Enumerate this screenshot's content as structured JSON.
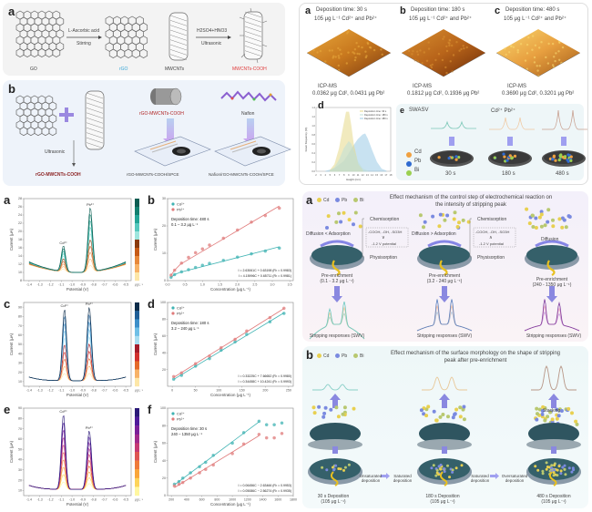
{
  "topleft": {
    "a_label": "a",
    "a_items": [
      "GO",
      "rGO",
      "MWCNTs",
      "MWCNTs-COOH"
    ],
    "a_arrow1_top": "L-Ascorbic acid",
    "a_arrow1_bottom": "Stirring",
    "a_arrow2_top": "H2SO4+HNO3",
    "a_arrow2_bottom": "Ultrasonic",
    "b_label": "b",
    "b_ultrasonic": "Ultrasonic",
    "b_product": "rGO-MWCNTs-COOH",
    "b_drop1": "rGO-MWCNTs-COOH",
    "b_drop2": "Nafion",
    "b_electrode1": "rGO-MWCNTs-COOH/SPCE",
    "b_electrode2": "Nafion/rGO-MWCNTs-COOH/SPCE",
    "colors": {
      "rgo": "#3aa8d8",
      "cooh": "#e03a3a",
      "dark_red": "#8a1f1f"
    }
  },
  "afm": {
    "panels": [
      {
        "label": "a",
        "line1": "Deposition time: 30 s",
        "line2": "105 μg L⁻¹ Cd²⁺ and Pb²⁺",
        "icp": "ICP-MS",
        "icp_values": "0.0362 μg Cd², 0.0431 μg Pb²"
      },
      {
        "label": "b",
        "line1": "Deposition time: 180 s",
        "line2": "105 μg L⁻¹ Cd²⁺ and Pb²⁺",
        "icp": "ICP-MS",
        "icp_values": "0.1812 μg Cd², 0.1936 μg Pb²"
      },
      {
        "label": "c",
        "line1": "Deposition time: 480 s",
        "line2": "105 μg L⁻¹ Cd²⁺ and Pb²⁺",
        "icp": "ICP-MS",
        "icp_values": "0.3690 μg Cd², 0.3201 μg Pb²"
      }
    ],
    "d_label": "d",
    "d_legend": [
      "Deposition time: 30 s",
      "Deposition time: 180 s",
      "Deposition time: 480 s"
    ],
    "d_xlabel": "Height (nm)",
    "d_ylabel": "Grain frequency (%)",
    "e_label": "e",
    "e_title": "SWASV",
    "e_ions": "Cd²⁺ Pb²⁺",
    "e_legend": [
      "Cd",
      "Pb",
      "Bi"
    ],
    "e_times": [
      "30 s",
      "180 s",
      "480 s"
    ]
  },
  "chart_data": [
    {
      "id": "a",
      "type": "line",
      "title": "",
      "xlabel": "Potential (V)",
      "ylabel": "Current (μA)",
      "xlim": [
        -1.45,
        -0.45
      ],
      "ylim": [
        8,
        28
      ],
      "xticks": [
        "-1.4",
        "-1.3",
        "-1.2",
        "-1.1",
        "-1.0",
        "-0.9",
        "-0.8",
        "-0.7",
        "-0.6",
        "-0.5"
      ],
      "yticks": [
        "8",
        "10",
        "12",
        "14",
        "16",
        "18",
        "20",
        "22",
        "24",
        "26",
        "28"
      ],
      "peaks": [
        {
          "label": "Cd²⁺",
          "x": -1.08,
          "y": 16.5
        },
        {
          "label": "Pb²⁺",
          "x": -0.83,
          "y": 25.8
        }
      ],
      "colorbar_label": "μg L⁻¹",
      "palette": [
        "#fde7a8",
        "#f7b267",
        "#e7883a",
        "#c65a16",
        "#8a3a0c",
        "#9fe6de",
        "#56c8bd",
        "#24a596",
        "#13806f",
        "#0d5d52"
      ]
    },
    {
      "id": "b",
      "type": "scatter",
      "xlabel": "Concentration (μg L⁻¹)",
      "ylabel": "Current (μA)",
      "xlim": [
        0,
        3.6
      ],
      "ylim": [
        0,
        30
      ],
      "xticks": [
        "0.0",
        "0.5",
        "1.0",
        "1.5",
        "2.0",
        "2.5",
        "3.0",
        "3.5"
      ],
      "yticks": [
        "0",
        "10",
        "20",
        "30"
      ],
      "annotation": [
        "Deposition time: 480 s",
        "0.1 – 3.2 μg L⁻¹"
      ],
      "equations": [
        "I = 2.63061C + 0.63198 (R² = 0.9983)",
        "I = 4.15996C + 0.65711 (R² = 0.9981)"
      ],
      "series": [
        {
          "name": "Cd²⁺",
          "color": "#3fb3b3",
          "x": [
            0.1,
            0.2,
            0.4,
            0.6,
            0.8,
            1.0,
            1.2,
            1.6,
            2.0,
            2.4,
            2.8,
            3.2
          ],
          "y": [
            1.2,
            2.2,
            3.2,
            4.0,
            4.8,
            5.6,
            6.3,
            7.4,
            8.6,
            9.8,
            10.8,
            11.9
          ]
        },
        {
          "name": "Pb²⁺",
          "color": "#e07a7a",
          "x": [
            0.1,
            0.2,
            0.4,
            0.6,
            0.8,
            1.0,
            1.2,
            1.6,
            2.0,
            2.4,
            2.8,
            3.2
          ],
          "y": [
            2.0,
            3.8,
            6.4,
            8.5,
            10.2,
            11.6,
            13.0,
            15.5,
            18.5,
            21.4,
            23.8,
            26.5
          ]
        }
      ]
    },
    {
      "id": "c",
      "type": "line",
      "xlabel": "Potential (V)",
      "ylabel": "Current (μA)",
      "xlim": [
        -1.45,
        -0.45
      ],
      "ylim": [
        5,
        95
      ],
      "xticks": [
        "-1.4",
        "-1.3",
        "-1.2",
        "-1.1",
        "-1.0",
        "-0.9",
        "-0.8",
        "-0.7",
        "-0.6",
        "-0.5"
      ],
      "yticks": [
        "10",
        "20",
        "30",
        "40",
        "50",
        "60",
        "70",
        "80",
        "90"
      ],
      "peaks": [
        {
          "label": "Cd²⁺",
          "x": -1.07,
          "y": 88
        },
        {
          "label": "Pb²⁺",
          "x": -0.84,
          "y": 90
        }
      ],
      "colorbar_label": "μg L⁻¹",
      "palette": [
        "#fde7a8",
        "#f7b267",
        "#e46a2a",
        "#d1302c",
        "#a41c2a",
        "#a9ddf0",
        "#6fbfe6",
        "#3d8fc9",
        "#1f5e96",
        "#0d2c4a"
      ]
    },
    {
      "id": "d",
      "type": "scatter",
      "xlabel": "Concentration (μg L⁻¹)",
      "ylabel": "Current (μA)",
      "xlim": [
        -10,
        260
      ],
      "ylim": [
        0,
        100
      ],
      "xticks": [
        "0",
        "50",
        "100",
        "150",
        "200",
        "250"
      ],
      "yticks": [
        "20",
        "40",
        "60",
        "80",
        "100"
      ],
      "annotation": [
        "Deposition time: 180 s",
        "3.2 – 240 μg L⁻¹"
      ],
      "equations": [
        "I = 0.33225C + 7.66652 (R² = 0.9980)",
        "I = 0.34458C + 10.4241 (R² = 0.9993)"
      ],
      "series": [
        {
          "name": "Cd²⁺",
          "color": "#3fb3b3",
          "x": [
            3.2,
            20,
            50,
            80,
            105,
            135,
            160,
            210,
            240
          ],
          "y": [
            8.5,
            13,
            24,
            33,
            43,
            53,
            62,
            77,
            87
          ]
        },
        {
          "name": "Pb²⁺",
          "color": "#e07a7a",
          "x": [
            3.2,
            20,
            50,
            80,
            105,
            135,
            160,
            210,
            240
          ],
          "y": [
            11.5,
            16,
            27,
            36,
            46,
            56,
            66,
            82,
            93
          ]
        }
      ]
    },
    {
      "id": "e",
      "type": "line",
      "xlabel": "Potential (V)",
      "ylabel": "Current (μA)",
      "xlim": [
        -1.45,
        -0.45
      ],
      "ylim": [
        5,
        90
      ],
      "xticks": [
        "-1.4",
        "-1.3",
        "-1.2",
        "-1.1",
        "-1.0",
        "-0.9",
        "-0.8",
        "-0.7",
        "-0.6",
        "-0.5"
      ],
      "yticks": [
        "10",
        "20",
        "30",
        "40",
        "50",
        "60",
        "70",
        "80",
        "90"
      ],
      "peaks": [
        {
          "label": "Cd²⁺",
          "x": -1.08,
          "y": 84
        },
        {
          "label": "Pb²⁺",
          "x": -0.84,
          "y": 68
        }
      ],
      "colorbar_label": "μg L⁻¹",
      "palette": [
        "#fff7a0",
        "#fdd45a",
        "#f9a63a",
        "#ef7a3a",
        "#de5552",
        "#c53a72",
        "#a02a8a",
        "#7a1f98",
        "#4f1a9a",
        "#2b1a78"
      ]
    },
    {
      "id": "f",
      "type": "scatter",
      "xlabel": "Concentration (μg L⁻¹)",
      "ylabel": "Current (μA)",
      "xlim": [
        150,
        1800
      ],
      "ylim": [
        0,
        100
      ],
      "xticks": [
        "200",
        "400",
        "600",
        "800",
        "1000",
        "1200",
        "1400",
        "1600",
        "1800"
      ],
      "yticks": [
        "0",
        "20",
        "40",
        "60",
        "80",
        "100"
      ],
      "annotation": [
        "Deposition time: 30 s",
        "240 – 1350 μg L⁻¹"
      ],
      "equations": [
        "I = 0.06456C − 2.63466 (R² = 0.9953)",
        "I = 0.05086C − 2.56274 (R² = 0.9935)"
      ],
      "series": [
        {
          "name": "Cd²⁺",
          "color": "#3fb3b3",
          "x": [
            240,
            300,
            350,
            450,
            570,
            650,
            750,
            1000,
            1150,
            1350,
            1450,
            1550,
            1650
          ],
          "y": [
            13,
            16,
            20,
            26,
            33,
            38,
            46,
            60,
            72,
            85,
            81,
            81,
            83
          ]
        },
        {
          "name": "Pb²⁺",
          "color": "#e07a7a",
          "x": [
            240,
            300,
            350,
            450,
            570,
            650,
            750,
            1000,
            1150,
            1350,
            1450,
            1550,
            1650
          ],
          "y": [
            11,
            13,
            15,
            20,
            26,
            30,
            35,
            48,
            59,
            70,
            66,
            66,
            71
          ]
        }
      ]
    },
    {
      "id": "afm-d",
      "type": "area",
      "xlabel": "Height (nm)",
      "ylabel": "Grain frequency (%)",
      "xlim": [
        2,
        18
      ],
      "ylim": [
        0,
        1.4
      ],
      "xticks": [
        "2",
        "3",
        "4",
        "5",
        "6",
        "7",
        "8",
        "9",
        "10",
        "11",
        "12",
        "13",
        "14",
        "15",
        "16",
        "17",
        "18"
      ],
      "yticks": [
        "0.0",
        "0.2",
        "0.4",
        "0.6",
        "0.8",
        "1.0",
        "1.2",
        "1.4"
      ],
      "series": [
        {
          "name": "Deposition time: 30 s",
          "color": "#e6d98a",
          "x": [
            5,
            6,
            7,
            8,
            8.5,
            9,
            9.5,
            10,
            11,
            12
          ],
          "y": [
            0.02,
            0.15,
            0.5,
            1.05,
            1.3,
            1.3,
            1.0,
            0.6,
            0.15,
            0.02
          ]
        },
        {
          "name": "Deposition time: 180 s",
          "color": "#bfe0d8",
          "x": [
            5,
            6,
            7,
            8,
            9,
            9.5,
            10,
            11,
            12,
            13
          ],
          "y": [
            0.01,
            0.08,
            0.25,
            0.5,
            0.65,
            0.6,
            0.45,
            0.2,
            0.05,
            0.01
          ]
        },
        {
          "name": "Deposition time: 480 s",
          "color": "#9ccbe6",
          "x": [
            4,
            6,
            8,
            9,
            10,
            11,
            12,
            12.5,
            13,
            14,
            15,
            16,
            17
          ],
          "y": [
            0,
            0.06,
            0.22,
            0.38,
            0.55,
            0.7,
            0.8,
            0.82,
            0.72,
            0.45,
            0.2,
            0.05,
            0.01
          ]
        }
      ]
    }
  ],
  "mechanism_a": {
    "label": "a",
    "legend": [
      "Cd",
      "Pb",
      "Bi"
    ],
    "title": "Effect mechanism of the control step of electrochemical reaction on the intensity of stripping peak",
    "relations": [
      "Diffusion < Adsorption",
      "Diffusion > Adsorption",
      "Diffusion"
    ],
    "chemisorption": "Chemisorption",
    "physisorption": "Physisorption",
    "groups": "-COOH, -OH, -SO3H",
    "potential": "-1.2 V potential",
    "compare": [
      "∨",
      "∧"
    ],
    "stages": [
      {
        "title": "Pre-enrichment",
        "range": "(0.1 - 3.2 μg L⁻¹)",
        "response": "Stripping responses (SWV)"
      },
      {
        "title": "Pre-enrichment",
        "range": "(3.2 - 240 μg L⁻¹)",
        "response": "Stripping responses (SWV)"
      },
      {
        "title": "Pre-enrichment",
        "range": "(240 - 1350 μg L⁻¹)",
        "response": "Stripping responses (SWV)"
      }
    ]
  },
  "mechanism_b": {
    "label": "b",
    "legend": [
      "Cd",
      "Pb",
      "Bi"
    ],
    "title": "Effect mechanism of the surface morphology on the shape of stripping peak after pre-enrichment",
    "transitions": [
      "Unsaturated deposition",
      "Saturated deposition",
      "Saturated deposition",
      "Oversaturated deposition"
    ],
    "stages": [
      {
        "title": "30 s Deposition",
        "conc": "(105 μg L⁻¹)"
      },
      {
        "title": "180 s Deposition",
        "conc": "(105 μg L⁻¹)"
      },
      {
        "title": "480 s Deposition",
        "conc": "(105 μg L⁻¹)"
      }
    ],
    "stacking": "Stacking"
  }
}
